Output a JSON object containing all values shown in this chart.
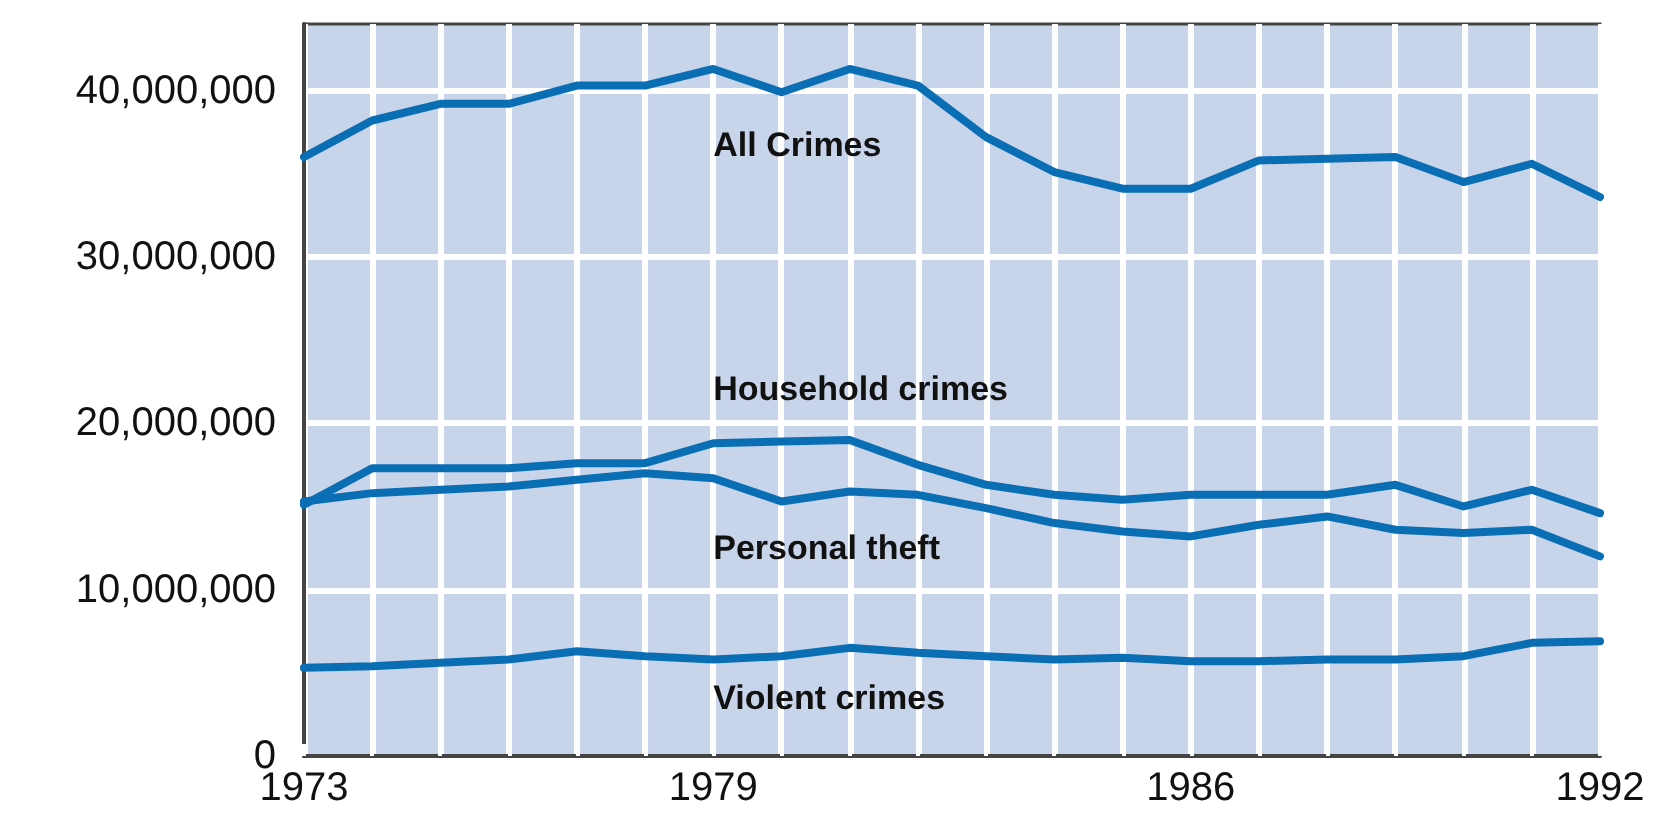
{
  "chart_data": {
    "type": "line",
    "x": [
      1973,
      1974,
      1975,
      1976,
      1977,
      1978,
      1979,
      1980,
      1981,
      1982,
      1983,
      1984,
      1985,
      1986,
      1987,
      1988,
      1989,
      1990,
      1991,
      1992
    ],
    "series": [
      {
        "name": "All Crimes",
        "color": "#0a6eb4",
        "values": [
          36000000,
          38200000,
          39200000,
          39200000,
          40300000,
          40300000,
          41300000,
          39900000,
          41300000,
          40300000,
          37200000,
          35100000,
          34100000,
          34100000,
          35800000,
          35900000,
          36000000,
          34500000,
          35600000,
          33600000
        ]
      },
      {
        "name": "Household crimes",
        "color": "#0a6eb4",
        "values": [
          15100000,
          17300000,
          17300000,
          17300000,
          17600000,
          17600000,
          18800000,
          18900000,
          19000000,
          17500000,
          16300000,
          15700000,
          15400000,
          15700000,
          15700000,
          15700000,
          16300000,
          15000000,
          16000000,
          14600000
        ]
      },
      {
        "name": "Personal theft",
        "color": "#0a6eb4",
        "values": [
          15300000,
          15800000,
          16000000,
          16200000,
          16600000,
          17000000,
          16700000,
          15300000,
          15900000,
          15700000,
          14900000,
          14000000,
          13500000,
          13200000,
          13900000,
          14400000,
          13600000,
          13400000,
          13600000,
          12000000
        ]
      },
      {
        "name": "Violent crimes",
        "color": "#0a6eb4",
        "values": [
          5300000,
          5400000,
          5600000,
          5800000,
          6300000,
          6000000,
          5800000,
          6000000,
          6500000,
          6200000,
          6000000,
          5800000,
          5900000,
          5700000,
          5700000,
          5800000,
          5800000,
          6000000,
          6800000,
          6900000
        ]
      }
    ],
    "xlim": [
      1973,
      1992
    ],
    "xticks": [
      1973,
      {
        "value": 1974,
        "label": null
      },
      {
        "value": 1975,
        "label": null
      },
      {
        "value": 1976,
        "label": null
      },
      {
        "value": 1977,
        "label": null
      },
      {
        "value": 1978,
        "label": null
      },
      1979,
      {
        "value": 1980,
        "label": null
      },
      {
        "value": 1981,
        "label": null
      },
      {
        "value": 1982,
        "label": null
      },
      {
        "value": 1983,
        "label": null
      },
      {
        "value": 1984,
        "label": null
      },
      {
        "value": 1985,
        "label": null
      },
      1986,
      {
        "value": 1987,
        "label": null
      },
      {
        "value": 1988,
        "label": null
      },
      {
        "value": 1989,
        "label": null
      },
      {
        "value": 1990,
        "label": null
      },
      {
        "value": 1991,
        "label": null
      },
      1992
    ],
    "ylim": [
      0,
      44000000
    ],
    "yticks": [
      0,
      {
        "value": 10000000,
        "label": "10,000,000"
      },
      {
        "value": 20000000,
        "label": "20,000,000"
      },
      {
        "value": 30000000,
        "label": "30,000,000"
      },
      {
        "value": 40000000,
        "label": "40,000,000"
      }
    ],
    "grid": true,
    "legend": false,
    "marker": "none",
    "line_style": "solid"
  }
}
